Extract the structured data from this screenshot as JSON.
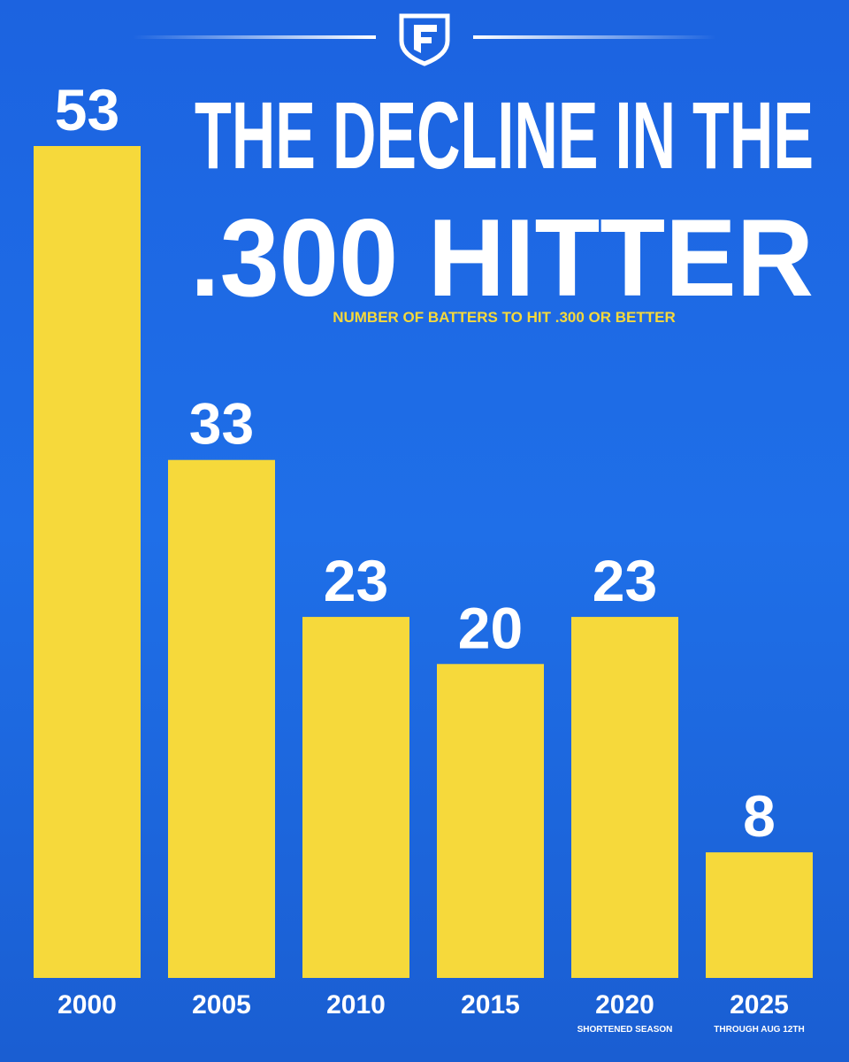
{
  "chart_data": {
    "type": "bar",
    "title_lines": [
      "THE DECLINE IN THE",
      ".300 HITTER"
    ],
    "subtitle": "NUMBER OF BATTERS TO HIT .300 OR BETTER",
    "categories": [
      "2000",
      "2005",
      "2010",
      "2015",
      "2020",
      "2025"
    ],
    "category_notes": [
      null,
      null,
      null,
      null,
      "SHORTENED SEASON",
      "THROUGH AUG 12TH"
    ],
    "values": [
      53,
      33,
      23,
      20,
      23,
      8
    ],
    "color": "#f6d93b"
  }
}
